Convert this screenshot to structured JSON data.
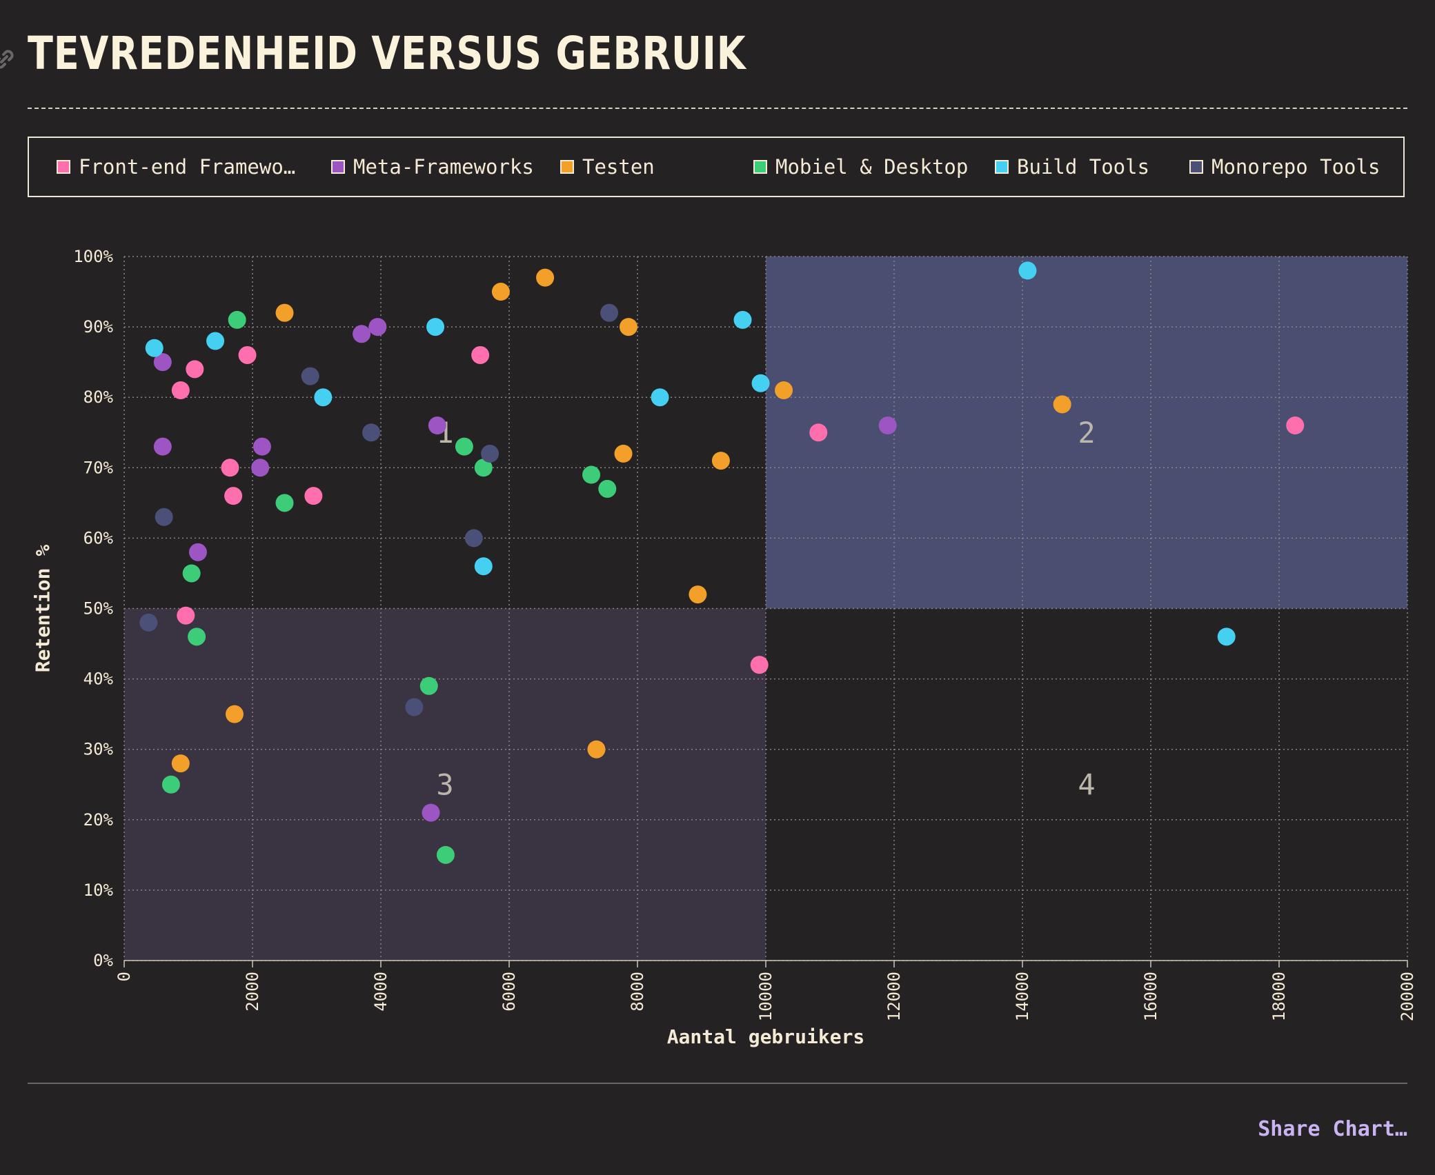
{
  "title": "TEVREDENHEID VERSUS GEBRUIK",
  "share_label": "Share Chart…",
  "legend": [
    {
      "label": "Front-end Framewo…",
      "color": "#ff6fae"
    },
    {
      "label": "Meta-Frameworks",
      "color": "#9d55c4"
    },
    {
      "label": "Testen",
      "color": "#f3a02a"
    },
    {
      "label": "Mobiel & Desktop",
      "color": "#3dcc78"
    },
    {
      "label": "Build Tools",
      "color": "#45d0f2"
    },
    {
      "label": "Monorepo Tools",
      "color": "#4b5078"
    }
  ],
  "chart_data": {
    "type": "scatter",
    "xlabel": "Aantal gebruikers",
    "ylabel": "Retention %",
    "xlim": [
      0,
      20000
    ],
    "ylim": [
      0,
      100
    ],
    "x_ticks": [
      "0",
      "2000",
      "4000",
      "6000",
      "8000",
      "10000",
      "12000",
      "14000",
      "16000",
      "18000",
      "20000"
    ],
    "y_ticks": [
      "0%",
      "10%",
      "20%",
      "30%",
      "40%",
      "50%",
      "60%",
      "70%",
      "80%",
      "90%",
      "100%"
    ],
    "grid": true,
    "legend_position": "top",
    "quadrants": [
      {
        "label": "1",
        "x": [
          0,
          10000
        ],
        "y": [
          50,
          100
        ],
        "color": "#252223"
      },
      {
        "label": "2",
        "x": [
          10000,
          20000
        ],
        "y": [
          50,
          100
        ],
        "color": "#4a4f72"
      },
      {
        "label": "3",
        "x": [
          0,
          10000
        ],
        "y": [
          0,
          50
        ],
        "color": "#3a3342"
      },
      {
        "label": "4",
        "x": [
          10000,
          20000
        ],
        "y": [
          0,
          50
        ],
        "color": "#252223"
      }
    ],
    "series": [
      {
        "name": "Front-end Framewo…",
        "color": "#ff6fae",
        "points": [
          [
            1100,
            84
          ],
          [
            880,
            81
          ],
          [
            1920,
            86
          ],
          [
            1650,
            70
          ],
          [
            1700,
            66
          ],
          [
            2950,
            66
          ],
          [
            5550,
            86
          ],
          [
            960,
            49
          ],
          [
            9900,
            42
          ],
          [
            10820,
            75
          ],
          [
            18250,
            76
          ]
        ]
      },
      {
        "name": "Meta-Frameworks",
        "color": "#9d55c4",
        "points": [
          [
            600,
            85
          ],
          [
            600,
            73
          ],
          [
            2150,
            73
          ],
          [
            2120,
            70
          ],
          [
            1150,
            58
          ],
          [
            3700,
            89
          ],
          [
            3950,
            90
          ],
          [
            4880,
            76
          ],
          [
            4780,
            21
          ],
          [
            11900,
            76
          ]
        ]
      },
      {
        "name": "Testen",
        "color": "#f3a02a",
        "points": [
          [
            2500,
            92
          ],
          [
            5870,
            95
          ],
          [
            6560,
            97
          ],
          [
            7860,
            90
          ],
          [
            7780,
            72
          ],
          [
            9300,
            71
          ],
          [
            10280,
            81
          ],
          [
            14620,
            79
          ],
          [
            8940,
            52
          ],
          [
            1720,
            35
          ],
          [
            880,
            28
          ],
          [
            7360,
            30
          ]
        ]
      },
      {
        "name": "Mobiel & Desktop",
        "color": "#3dcc78",
        "points": [
          [
            1760,
            91
          ],
          [
            2500,
            65
          ],
          [
            1050,
            55
          ],
          [
            1130,
            46
          ],
          [
            730,
            25
          ],
          [
            5300,
            73
          ],
          [
            5600,
            70
          ],
          [
            7280,
            69
          ],
          [
            7530,
            67
          ],
          [
            4750,
            39
          ],
          [
            5010,
            15
          ]
        ]
      },
      {
        "name": "Build Tools",
        "color": "#45d0f2",
        "points": [
          [
            470,
            87
          ],
          [
            1420,
            88
          ],
          [
            3100,
            80
          ],
          [
            4850,
            90
          ],
          [
            5600,
            56
          ],
          [
            8350,
            80
          ],
          [
            9640,
            91
          ],
          [
            9920,
            82
          ],
          [
            14080,
            98
          ],
          [
            17180,
            46
          ]
        ]
      },
      {
        "name": "Monorepo Tools",
        "color": "#4b5078",
        "points": [
          [
            2900,
            83
          ],
          [
            3850,
            75
          ],
          [
            620,
            63
          ],
          [
            380,
            48
          ],
          [
            5450,
            60
          ],
          [
            5700,
            72
          ],
          [
            7560,
            92
          ],
          [
            4520,
            36
          ]
        ]
      }
    ]
  }
}
